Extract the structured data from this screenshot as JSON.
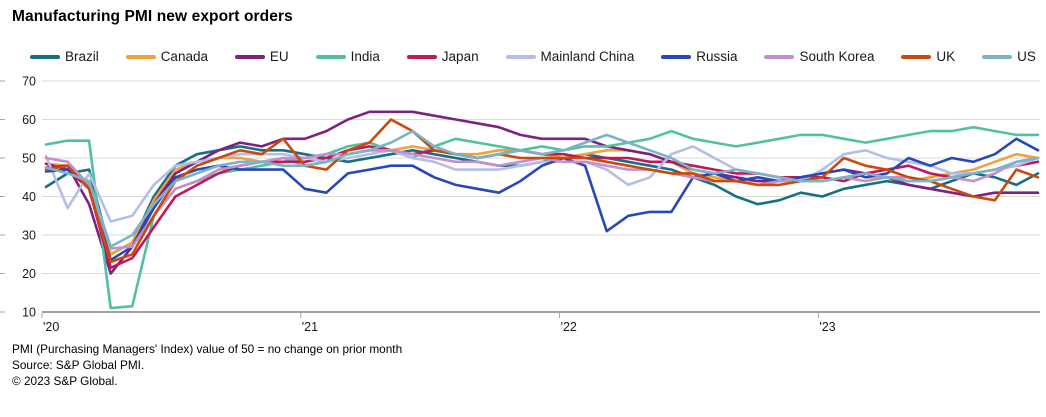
{
  "title": "Manufacturing PMI new export orders",
  "footer": {
    "note": "PMI (Purchasing Managers' Index) value of 50 = no change on prior month",
    "source": "Source: S&P Global PMI.",
    "copyright": "© 2023 S&P Global."
  },
  "style_colors": {
    "grid": "#d9d9d9",
    "axis": "#808080",
    "tick": "#a6a6a6",
    "label_text": "#1a1a1a"
  },
  "chart_data": {
    "type": "line",
    "title": "Manufacturing PMI new export orders",
    "x_unit": "month",
    "points_per_year": 12,
    "x_tick_labels": [
      "'20",
      "'21",
      "'22",
      "'23"
    ],
    "x_tick_month_index": [
      0,
      12,
      24,
      36
    ],
    "ylim": [
      10,
      70
    ],
    "y_ticks": [
      10,
      20,
      30,
      40,
      50,
      60,
      70
    ],
    "grid": "horizontal",
    "legend_position": "top",
    "reference_note": "value of 50 = no change on prior month",
    "series": [
      {
        "name": "Brazil",
        "color": "#15707f",
        "values": [
          42.5,
          46,
          47,
          25,
          28,
          40,
          48,
          51,
          52,
          53,
          52,
          52,
          51,
          50,
          49,
          50,
          51,
          52,
          51,
          50,
          49,
          48,
          48,
          49,
          50,
          51,
          50,
          49,
          48,
          47,
          45,
          43,
          40,
          38,
          39,
          41,
          40,
          42,
          43,
          44,
          43,
          42,
          44,
          46,
          45,
          43,
          46
        ]
      },
      {
        "name": "Canada",
        "color": "#f0a23c",
        "values": [
          48.5,
          48,
          43,
          25,
          28,
          39,
          47,
          49,
          50,
          50,
          49,
          50,
          48,
          49,
          51,
          52,
          52,
          53,
          52,
          51,
          51,
          52,
          52,
          51,
          50,
          51,
          52,
          52,
          51,
          49,
          46,
          45,
          44,
          44,
          44,
          45,
          46,
          47,
          45,
          45,
          44,
          45,
          46,
          47,
          49,
          51,
          50
        ]
      },
      {
        "name": "EU",
        "color": "#7d2283",
        "values": [
          47.5,
          48,
          38,
          20,
          27,
          38,
          46,
          49,
          52,
          54,
          53,
          55,
          55,
          57,
          60,
          62,
          62,
          62,
          61,
          60,
          59,
          58,
          56,
          55,
          55,
          55,
          53,
          52,
          51,
          49,
          47,
          46,
          45,
          44,
          44,
          45,
          46,
          47,
          46,
          45,
          43,
          42,
          41,
          40,
          41,
          41,
          41
        ]
      },
      {
        "name": "India",
        "color": "#52c0a4",
        "values": [
          53.5,
          54.5,
          54.5,
          11,
          11.5,
          35,
          42,
          44,
          46,
          47,
          48,
          49,
          50,
          51,
          53,
          54,
          52,
          50,
          53,
          55,
          54,
          53,
          52,
          53,
          52,
          53,
          53,
          54,
          55,
          57,
          55,
          54,
          53,
          54,
          55,
          56,
          56,
          55,
          54,
          55,
          56,
          57,
          57,
          58,
          57,
          56,
          56
        ]
      },
      {
        "name": "Japan",
        "color": "#c2175b",
        "values": [
          48.5,
          47,
          42,
          21.5,
          24,
          32,
          40,
          43,
          46,
          48,
          49,
          49,
          49,
          50,
          52,
          53,
          52,
          51,
          52,
          51,
          50,
          51,
          52,
          51,
          51,
          50,
          50,
          50,
          49,
          49,
          48,
          47,
          46,
          46,
          45,
          45,
          45,
          44,
          46,
          47,
          48,
          46,
          45,
          46,
          47,
          48,
          49
        ]
      },
      {
        "name": "Mainland China",
        "color": "#b4bee8",
        "values": [
          50.5,
          37,
          46,
          33.5,
          35,
          43,
          48,
          49,
          50,
          51,
          51,
          51,
          50,
          49,
          50,
          51,
          52,
          50,
          49,
          47,
          47,
          47,
          48,
          49,
          49,
          49,
          47,
          43,
          45,
          51,
          53,
          50,
          47,
          46,
          45,
          44,
          47,
          51,
          52,
          50,
          49,
          48,
          46,
          46,
          47,
          48,
          50
        ]
      },
      {
        "name": "Russia",
        "color": "#2847b8",
        "values": [
          46.5,
          47,
          43,
          23.5,
          27,
          37,
          45,
          47,
          48,
          47,
          47,
          47,
          42,
          41,
          46,
          47,
          48,
          48,
          45,
          43,
          42,
          41,
          44,
          48,
          50,
          48,
          31,
          35,
          36,
          36,
          45,
          46,
          44,
          45,
          44,
          45,
          46,
          47,
          45,
          46,
          50,
          48,
          50,
          49,
          51,
          55,
          52
        ]
      },
      {
        "name": "South Korea",
        "color": "#c38fcf",
        "values": [
          50,
          49,
          43,
          26.5,
          27,
          35,
          42,
          44,
          47,
          48,
          49,
          50,
          50,
          51,
          51,
          52,
          52,
          51,
          50,
          49,
          49,
          48,
          49,
          50,
          49,
          49,
          48,
          47,
          47,
          46,
          45,
          44,
          44,
          43,
          44,
          44,
          44,
          45,
          44,
          45,
          45,
          44,
          45,
          44,
          46,
          49,
          50
        ]
      },
      {
        "name": "UK",
        "color": "#c94b0c",
        "values": [
          47,
          48,
          42,
          23,
          25,
          35,
          44,
          48,
          50,
          52,
          51,
          55,
          48,
          47,
          52,
          54,
          60,
          57,
          52,
          51,
          50,
          51,
          50,
          50,
          50,
          50,
          49,
          48,
          47,
          46,
          46,
          44,
          44,
          43,
          43,
          44,
          45,
          50,
          48,
          47,
          45,
          44,
          42,
          40,
          39,
          47,
          45
        ]
      },
      {
        "name": "US",
        "color": "#79b5c6",
        "values": [
          47.5,
          46,
          44,
          27,
          30,
          38,
          44,
          46,
          48,
          49,
          49,
          48,
          48,
          49,
          51,
          52,
          54,
          57,
          53,
          51,
          50,
          51,
          52,
          51,
          52,
          54,
          56,
          54,
          52,
          50,
          47,
          46,
          47,
          46,
          45,
          44,
          44,
          45,
          46,
          45,
          44,
          44,
          45,
          46,
          47,
          49,
          50
        ]
      }
    ]
  }
}
